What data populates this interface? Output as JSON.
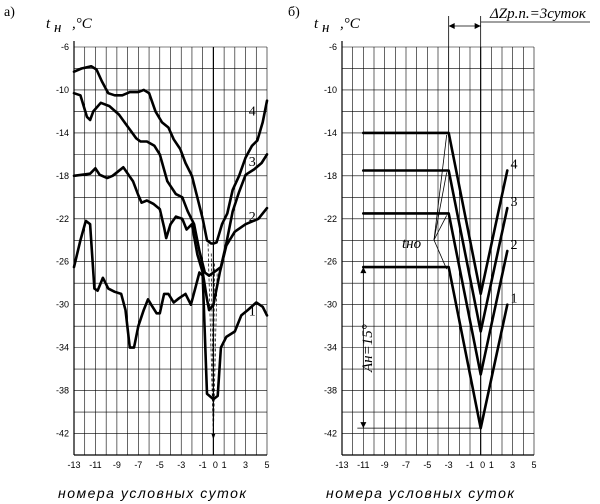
{
  "panel_a": {
    "letter": "а)",
    "ylabel_t": "t",
    "ylabel_sub": "н",
    "ylabel_unit": ",°C",
    "caption": "номера условных суток"
  },
  "panel_b": {
    "letter": "б)",
    "ylabel_t": "t",
    "ylabel_sub": "н",
    "ylabel_unit": ",°C",
    "caption": "номера условных суток",
    "delta_label": "ΔZр.п.=3суток",
    "tno_label": "tно",
    "amp_label": "Aн=15°"
  },
  "chart_data": [
    {
      "type": "line",
      "panel": "а)",
      "xlabel": "номера условных суток",
      "ylabel": "tн ,°C",
      "xlim": [
        -13,
        5
      ],
      "ylim": [
        -44,
        -6
      ],
      "x_ticks": [
        -13,
        -11,
        -9,
        -7,
        -5,
        -3,
        -1,
        0,
        1,
        3,
        5
      ],
      "y_ticks": [
        -6,
        -10,
        -14,
        -18,
        -22,
        -26,
        -30,
        -34,
        -38,
        -42
      ],
      "series": [
        {
          "name": "1",
          "x": [
            -13,
            -12.4,
            -11.9,
            -11.5,
            -11.1,
            -10.8,
            -10.3,
            -9.8,
            -9.2,
            -8.6,
            -8.2,
            -7.8,
            -7.4,
            -7.0,
            -6.5,
            -6.1,
            -5.8,
            -5.3,
            -5.0,
            -4.6,
            -4.2,
            -3.7,
            -3.2,
            -2.6,
            -2.1,
            -1.7,
            -1.3,
            -1.0,
            -0.6,
            0,
            0.4,
            0.7,
            1.2,
            2.0,
            2.6,
            3.2,
            4.0,
            4.6,
            5.0
          ],
          "y": [
            -26.5,
            -24,
            -22.2,
            -22.5,
            -28.5,
            -28.7,
            -27.5,
            -28.5,
            -28.8,
            -29,
            -30.5,
            -34,
            -34,
            -32,
            -30.5,
            -29.5,
            -30,
            -30.8,
            -30.8,
            -29,
            -29,
            -29.8,
            -29.4,
            -29,
            -30,
            -28.5,
            -27,
            -27.3,
            -38.3,
            -38.8,
            -38.5,
            -34,
            -33,
            -32.5,
            -31,
            -30.5,
            -29.8,
            -30.2,
            -31
          ]
        },
        {
          "name": "2",
          "x": [
            -13,
            -11.5,
            -11,
            -10.6,
            -9.9,
            -9.4,
            -8.4,
            -7.5,
            -7.0,
            -6.7,
            -6.2,
            -5.6,
            -5.0,
            -4.6,
            -4.4,
            -4.0,
            -3.5,
            -2.9,
            -2.5,
            -2.0,
            -1.5,
            -1.0,
            -0.6,
            -0.4,
            0,
            0.6,
            1.2,
            2.0,
            3.0,
            4.2,
            5.0
          ],
          "y": [
            -18,
            -17.8,
            -17.3,
            -17.9,
            -18.2,
            -18,
            -17.2,
            -18.5,
            -19.8,
            -20.5,
            -20.3,
            -20.6,
            -21.1,
            -22.8,
            -23.8,
            -22.5,
            -21.8,
            -22,
            -23,
            -22.5,
            -25.3,
            -27,
            -29.5,
            -30.5,
            -30,
            -27,
            -24.5,
            -23.2,
            -22.5,
            -22,
            -21
          ]
        },
        {
          "name": "3",
          "x": [
            -13,
            -12.4,
            -11.8,
            -11.5,
            -11.2,
            -10.5,
            -9.7,
            -8.8,
            -8.0,
            -7.2,
            -6.8,
            -6.2,
            -5.5,
            -5.0,
            -4.3,
            -3.5,
            -2.9,
            -2.4,
            -1.8,
            -1.3,
            -0.8,
            -0.4,
            0,
            0.3,
            0.7,
            1.2,
            1.8,
            2.4,
            3.0,
            3.8,
            4.5,
            5.0
          ],
          "y": [
            -10.3,
            -10.5,
            -12.5,
            -12.8,
            -12,
            -11.2,
            -11.5,
            -12.3,
            -13.4,
            -14.5,
            -14.8,
            -14.8,
            -15.2,
            -16,
            -18.5,
            -19.7,
            -20,
            -21.3,
            -22.5,
            -25,
            -27,
            -27.3,
            -27,
            -26.8,
            -26.5,
            -24.3,
            -21.3,
            -19.5,
            -17.9,
            -17.4,
            -16.8,
            -16
          ]
        },
        {
          "name": "4",
          "x": [
            -13,
            -12.3,
            -11.4,
            -10.9,
            -10.4,
            -9.8,
            -9.2,
            -8.5,
            -7.8,
            -7.0,
            -6.5,
            -6.0,
            -5.4,
            -4.8,
            -4.2,
            -3.7,
            -3.1,
            -2.6,
            -2.0,
            -1.5,
            -1.0,
            -0.6,
            -0.2,
            0,
            0.3,
            0.8,
            1.3,
            1.8,
            2.4,
            3.0,
            3.6,
            4.1,
            4.6,
            5.0
          ],
          "y": [
            -8.3,
            -8,
            -7.8,
            -8.1,
            -9.2,
            -10.3,
            -10.5,
            -10.5,
            -10.2,
            -10.2,
            -10,
            -10.3,
            -12,
            -13,
            -13.5,
            -14.6,
            -15.5,
            -16.8,
            -18,
            -20,
            -22,
            -24,
            -24.3,
            -24.3,
            -24.2,
            -22.5,
            -21.5,
            -19.3,
            -18,
            -16.3,
            -15.2,
            -14.7,
            -13,
            -11
          ]
        }
      ]
    },
    {
      "type": "line",
      "panel": "б)",
      "xlabel": "номера условных суток",
      "ylabel": "tн ,°C",
      "xlim": [
        -13,
        5
      ],
      "ylim": [
        -44,
        -6
      ],
      "x_ticks": [
        -13,
        -11,
        -9,
        -7,
        -5,
        -3,
        -1,
        0,
        1,
        3,
        5
      ],
      "y_ticks": [
        -6,
        -10,
        -14,
        -18,
        -22,
        -26,
        -30,
        -34,
        -38,
        -42
      ],
      "annotations": [
        "ΔZр.п.=3суток",
        "tно",
        "Aн=15°"
      ],
      "series": [
        {
          "name": "1",
          "x": [
            -11,
            -3,
            0,
            2.5
          ],
          "y": [
            -26.5,
            -26.5,
            -41.5,
            -30
          ]
        },
        {
          "name": "2",
          "x": [
            -11,
            -3,
            0,
            2.5
          ],
          "y": [
            -21.5,
            -21.5,
            -36.5,
            -25
          ]
        },
        {
          "name": "3",
          "x": [
            -11,
            -3,
            0,
            2.5
          ],
          "y": [
            -17.5,
            -17.5,
            -32.5,
            -21
          ]
        },
        {
          "name": "4",
          "x": [
            -11,
            -3,
            0,
            2.5
          ],
          "y": [
            -14,
            -14,
            -29,
            -17.5
          ]
        }
      ]
    }
  ]
}
